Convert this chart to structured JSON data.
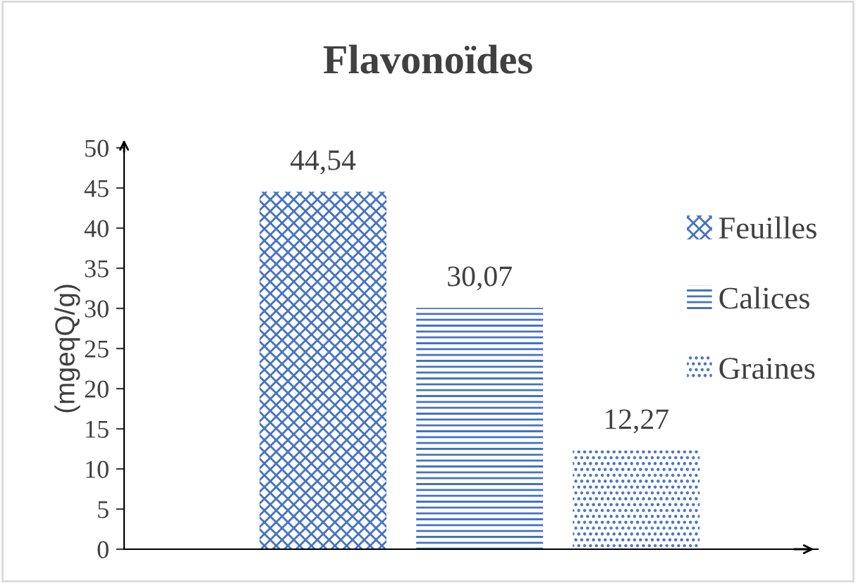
{
  "chart_data": {
    "type": "bar",
    "title": "Flavonoïdes",
    "ylabel": "(mgeqQ/g)",
    "categories": [
      null
    ],
    "series": [
      {
        "name": "Feuilles",
        "color": "#4472c4",
        "values": [
          44.54
        ],
        "value_labels": [
          "44,54"
        ]
      },
      {
        "name": "Calices",
        "color": "#4472c4",
        "values": [
          30.07
        ],
        "value_labels": [
          "30,07"
        ]
      },
      {
        "name": "Graines",
        "color": "#4472c4",
        "values": [
          12.27
        ],
        "value_labels": [
          "12,27"
        ]
      }
    ],
    "ylim": [
      0,
      50
    ],
    "yticks": [
      0,
      5,
      10,
      15,
      20,
      25,
      30,
      35,
      40,
      45,
      50
    ],
    "grid": false,
    "legend": "right"
  }
}
